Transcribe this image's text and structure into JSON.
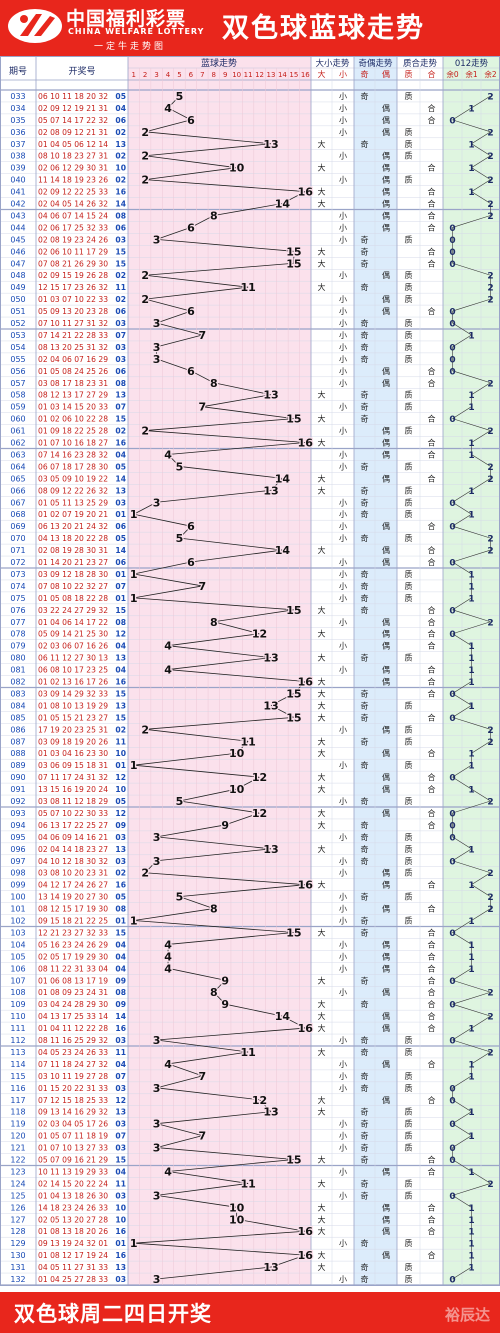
{
  "header": {
    "brand_cn": "中国福利彩票",
    "brand_en": "CHINA WELFARE LOTTERY",
    "slogan": "一定牛走势图",
    "title": "双色球蓝球走势"
  },
  "columns": {
    "issue": "期号",
    "numbers": "开奖号",
    "blue_trend": "蓝球走势",
    "size_trend": "大小走势",
    "parity_trend": "奇偶走势",
    "prime_trend": "质合走势",
    "mod_trend": "012走势",
    "size_labels": [
      "大",
      "小"
    ],
    "parity_labels": [
      "奇",
      "偶"
    ],
    "prime_labels": [
      "质",
      "合"
    ],
    "mod_labels": [
      "余0",
      "余1",
      "余2"
    ]
  },
  "footer": {
    "text": "双色球周二四日开奖",
    "watermark": "裕辰达"
  },
  "colors": {
    "brand_red": "#e8261c",
    "red_ball": "#c51f1a",
    "blue_ball": "#1a4bb5",
    "trend_bg": "#fbe1ec",
    "size_bg": "#ffffff",
    "parity_bg": "#dcecfb",
    "prime_bg": "#ffffff",
    "mod_bg": "#dff5e0"
  },
  "chart_data": {
    "type": "line",
    "y_categories": [
      "1",
      "2",
      "3",
      "4",
      "5",
      "6",
      "7",
      "8",
      "9",
      "10",
      "11",
      "12",
      "13",
      "14",
      "15",
      "16"
    ],
    "rows": [
      {
        "issue": "033",
        "reds": "06 10 11 18 20 32",
        "blue": 5
      },
      {
        "issue": "034",
        "reds": "02 09 12 19 21 31",
        "blue": 4
      },
      {
        "issue": "035",
        "reds": "05 07 14 17 22 32",
        "blue": 6
      },
      {
        "issue": "036",
        "reds": "02 08 09 12 21 31",
        "blue": 2
      },
      {
        "issue": "037",
        "reds": "01 04 05 06 12 14",
        "blue": 13
      },
      {
        "issue": "038",
        "reds": "08 10 18 23 27 31",
        "blue": 2
      },
      {
        "issue": "039",
        "reds": "02 06 12 29 30 31",
        "blue": 10
      },
      {
        "issue": "040",
        "reds": "11 14 18 19 23 26",
        "blue": 2
      },
      {
        "issue": "041",
        "reds": "02 09 12 22 25 33",
        "blue": 16
      },
      {
        "issue": "042",
        "reds": "02 04 05 14 26 32",
        "blue": 14
      },
      {
        "issue": "043",
        "reds": "04 06 07 14 15 24",
        "blue": 8
      },
      {
        "issue": "044",
        "reds": "02 06 17 25 32 33",
        "blue": 6
      },
      {
        "issue": "045",
        "reds": "02 08 19 23 24 26",
        "blue": 3
      },
      {
        "issue": "046",
        "reds": "02 06 10 11 17 29",
        "blue": 15
      },
      {
        "issue": "047",
        "reds": "07 08 21 26 29 30",
        "blue": 15
      },
      {
        "issue": "048",
        "reds": "02 09 15 19 26 28",
        "blue": 2
      },
      {
        "issue": "049",
        "reds": "12 15 17 23 26 32",
        "blue": 11
      },
      {
        "issue": "050",
        "reds": "01 03 07 10 22 33",
        "blue": 2
      },
      {
        "issue": "051",
        "reds": "05 09 13 20 23 28",
        "blue": 6
      },
      {
        "issue": "052",
        "reds": "07 10 11 27 31 32",
        "blue": 3
      },
      {
        "issue": "053",
        "reds": "07 14 21 22 28 33",
        "blue": 7
      },
      {
        "issue": "054",
        "reds": "08 13 20 25 31 32",
        "blue": 3
      },
      {
        "issue": "055",
        "reds": "02 04 06 07 16 29",
        "blue": 3
      },
      {
        "issue": "056",
        "reds": "01 05 08 24 25 26",
        "blue": 6
      },
      {
        "issue": "057",
        "reds": "03 08 17 18 23 31",
        "blue": 8
      },
      {
        "issue": "058",
        "reds": "08 12 13 17 27 29",
        "blue": 13
      },
      {
        "issue": "059",
        "reds": "01 03 14 15 20 33",
        "blue": 7
      },
      {
        "issue": "060",
        "reds": "01 02 06 10 22 28",
        "blue": 15
      },
      {
        "issue": "061",
        "reds": "01 09 18 22 25 28",
        "blue": 2
      },
      {
        "issue": "062",
        "reds": "01 07 10 16 18 27",
        "blue": 16
      },
      {
        "issue": "063",
        "reds": "07 14 16 23 28 32",
        "blue": 4
      },
      {
        "issue": "064",
        "reds": "06 07 18 17 28 30",
        "blue": 5
      },
      {
        "issue": "065",
        "reds": "03 05 09 10 19 22",
        "blue": 14
      },
      {
        "issue": "066",
        "reds": "08 09 12 22 26 32",
        "blue": 13
      },
      {
        "issue": "067",
        "reds": "01 05 11 13 25 29",
        "blue": 3
      },
      {
        "issue": "068",
        "reds": "01 02 07 19 20 21",
        "blue": 1
      },
      {
        "issue": "069",
        "reds": "06 13 20 21 24 32",
        "blue": 6
      },
      {
        "issue": "070",
        "reds": "04 13 18 20 22 28",
        "blue": 5
      },
      {
        "issue": "071",
        "reds": "02 08 19 28 30 31",
        "blue": 14
      },
      {
        "issue": "072",
        "reds": "01 14 20 21 23 27",
        "blue": 6
      },
      {
        "issue": "073",
        "reds": "03 09 12 18 28 30",
        "blue": 1
      },
      {
        "issue": "074",
        "reds": "07 08 10 22 32 27",
        "blue": 7
      },
      {
        "issue": "075",
        "reds": "01 05 08 18 22 28",
        "blue": 1
      },
      {
        "issue": "076",
        "reds": "03 22 24 27 29 32",
        "blue": 15
      },
      {
        "issue": "077",
        "reds": "01 04 06 14 17 22",
        "blue": 8
      },
      {
        "issue": "078",
        "reds": "05 09 14 21 25 30",
        "blue": 12
      },
      {
        "issue": "079",
        "reds": "02 03 06 07 16 26",
        "blue": 4
      },
      {
        "issue": "080",
        "reds": "06 11 12 27 30 13",
        "blue": 13
      },
      {
        "issue": "081",
        "reds": "06 08 10 17 23 25",
        "blue": 4
      },
      {
        "issue": "082",
        "reds": "01 02 13 16 17 26",
        "blue": 16
      },
      {
        "issue": "083",
        "reds": "03 09 14 29 32 33",
        "blue": 15
      },
      {
        "issue": "084",
        "reds": "01 08 10 13 19 29",
        "blue": 13
      },
      {
        "issue": "085",
        "reds": "01 05 15 21 23 27",
        "blue": 15
      },
      {
        "issue": "086",
        "reds": "17 19 20 23 25 31",
        "blue": 2
      },
      {
        "issue": "087",
        "reds": "03 09 18 19 20 26",
        "blue": 11
      },
      {
        "issue": "088",
        "reds": "01 03 04 16 23 30",
        "blue": 10
      },
      {
        "issue": "089",
        "reds": "03 06 09 15 18 31",
        "blue": 1
      },
      {
        "issue": "090",
        "reds": "07 11 17 24 31 32",
        "blue": 12
      },
      {
        "issue": "091",
        "reds": "13 15 16 19 20 24",
        "blue": 10
      },
      {
        "issue": "092",
        "reds": "03 08 11 12 18 29",
        "blue": 5
      },
      {
        "issue": "093",
        "reds": "05 07 10 22 30 33",
        "blue": 12
      },
      {
        "issue": "094",
        "reds": "06 13 17 22 25 27",
        "blue": 9
      },
      {
        "issue": "095",
        "reds": "04 06 09 14 16 21",
        "blue": 3
      },
      {
        "issue": "096",
        "reds": "02 04 14 18 23 27",
        "blue": 13
      },
      {
        "issue": "097",
        "reds": "04 10 12 18 30 32",
        "blue": 3
      },
      {
        "issue": "098",
        "reds": "03 08 10 20 23 31",
        "blue": 2
      },
      {
        "issue": "099",
        "reds": "04 12 17 24 26 27",
        "blue": 16
      },
      {
        "issue": "100",
        "reds": "13 14 19 20 27 30",
        "blue": 5
      },
      {
        "issue": "101",
        "reds": "08 12 15 17 19 30",
        "blue": 8
      },
      {
        "issue": "102",
        "reds": "09 15 18 21 22 25",
        "blue": 1
      },
      {
        "issue": "103",
        "reds": "12 21 23 27 32 33",
        "blue": 15
      },
      {
        "issue": "104",
        "reds": "05 16 23 24 26 29",
        "blue": 4
      },
      {
        "issue": "105",
        "reds": "02 05 17 19 29 30",
        "blue": 4
      },
      {
        "issue": "106",
        "reds": "08 11 22 31 33 04",
        "blue": 4
      },
      {
        "issue": "107",
        "reds": "01 06 08 13 17 19",
        "blue": 9
      },
      {
        "issue": "108",
        "reds": "01 08 09 23 24 31",
        "blue": 8
      },
      {
        "issue": "109",
        "reds": "03 04 24 28 29 30",
        "blue": 9
      },
      {
        "issue": "110",
        "reds": "04 13 17 25 33 14",
        "blue": 14
      },
      {
        "issue": "111",
        "reds": "01 04 11 12 22 28",
        "blue": 16
      },
      {
        "issue": "112",
        "reds": "08 11 16 25 29 32",
        "blue": 3
      },
      {
        "issue": "113",
        "reds": "04 05 23 24 26 33",
        "blue": 11
      },
      {
        "issue": "114",
        "reds": "07 11 18 24 27 32",
        "blue": 4
      },
      {
        "issue": "115",
        "reds": "03 10 11 19 27 28",
        "blue": 7
      },
      {
        "issue": "116",
        "reds": "01 15 20 22 31 33",
        "blue": 3
      },
      {
        "issue": "117",
        "reds": "07 12 15 18 25 33",
        "blue": 12
      },
      {
        "issue": "118",
        "reds": "09 13 14 16 29 32",
        "blue": 13
      },
      {
        "issue": "119",
        "reds": "02 03 04 05 17 26",
        "blue": 3
      },
      {
        "issue": "120",
        "reds": "01 05 07 11 18 19",
        "blue": 7
      },
      {
        "issue": "121",
        "reds": "01 07 10 13 27 33",
        "blue": 3
      },
      {
        "issue": "122",
        "reds": "05 07 09 16 21 29",
        "blue": 15
      },
      {
        "issue": "123",
        "reds": "10 11 13 19 29 33",
        "blue": 4
      },
      {
        "issue": "124",
        "reds": "02 14 15 20 22 24",
        "blue": 11
      },
      {
        "issue": "125",
        "reds": "01 04 13 18 26 30",
        "blue": 3
      },
      {
        "issue": "126",
        "reds": "14 18 23 24 26 33",
        "blue": 10
      },
      {
        "issue": "127",
        "reds": "02 05 13 20 27 28",
        "blue": 10
      },
      {
        "issue": "128",
        "reds": "01 08 13 18 20 26",
        "blue": 16
      },
      {
        "issue": "129",
        "reds": "09 13 19 24 32 01",
        "blue": 1
      },
      {
        "issue": "130",
        "reds": "01 08 12 17 19 24",
        "blue": 16
      },
      {
        "issue": "131",
        "reds": "04 05 11 27 31 33",
        "blue": 13
      },
      {
        "issue": "132",
        "reds": "01 04 25 27 28 33",
        "blue": 3
      }
    ]
  }
}
